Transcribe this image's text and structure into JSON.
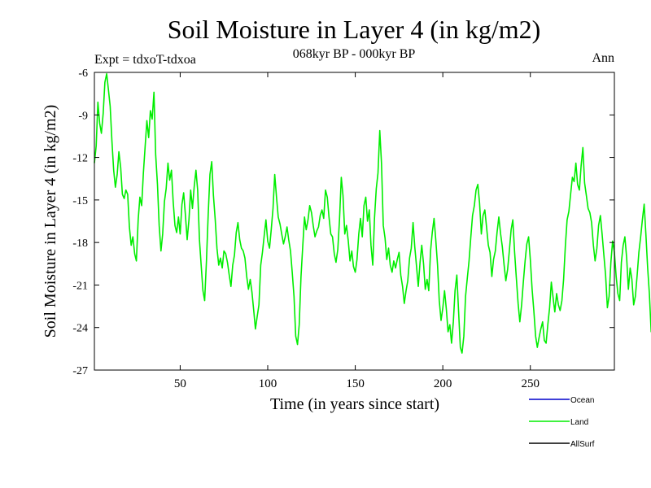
{
  "chart_data": {
    "type": "line",
    "title": "Soil Moisture in Layer 4 (in kg/m2)",
    "subtitle": "068kyr BP - 000kyr BP",
    "left_note": "Expt = tdxoT-tdxoa",
    "right_note": "Ann",
    "xlabel": "Time (in years since start)",
    "ylabel": "Soil Moisture in Layer 4 (in kg/m2)",
    "xlim": [
      1,
      298
    ],
    "ylim": [
      -27,
      -6
    ],
    "xticks": [
      50,
      100,
      150,
      200,
      250
    ],
    "yticks": [
      -6,
      -9,
      -12,
      -15,
      -18,
      -21,
      -24,
      -27
    ],
    "legend_position": "bottom-right",
    "series": [
      {
        "name": "Ocean",
        "color": "#0000cc",
        "values": []
      },
      {
        "name": "Land",
        "color": "#00ee00",
        "x_start": 1,
        "x_step": 1,
        "values": [
          -12.4,
          -11.2,
          -8.1,
          -9.6,
          -10.3,
          -8.9,
          -6.7,
          -6.1,
          -7.2,
          -8.4,
          -10.8,
          -12.9,
          -14.1,
          -13.2,
          -11.6,
          -12.7,
          -14.6,
          -14.9,
          -14.3,
          -14.6,
          -16.9,
          -18.2,
          -17.6,
          -18.8,
          -19.3,
          -16.4,
          -14.8,
          -15.4,
          -13.1,
          -11.2,
          -9.4,
          -10.6,
          -8.7,
          -9.3,
          -7.4,
          -11.8,
          -13.9,
          -16.8,
          -18.6,
          -17.4,
          -15.1,
          -14.2,
          -12.4,
          -13.6,
          -12.9,
          -15.1,
          -16.8,
          -17.3,
          -16.2,
          -17.4,
          -15.3,
          -14.5,
          -16.1,
          -17.8,
          -16.4,
          -14.3,
          -15.6,
          -14.1,
          -12.9,
          -14.3,
          -17.8,
          -19.6,
          -21.4,
          -22.1,
          -19.3,
          -16.1,
          -13.2,
          -12.3,
          -14.7,
          -16.4,
          -18.4,
          -19.6,
          -19.1,
          -19.8,
          -18.6,
          -18.8,
          -19.4,
          -20.3,
          -21.1,
          -19.6,
          -18.9,
          -17.3,
          -16.6,
          -17.8,
          -18.4,
          -18.6,
          -19.1,
          -20.4,
          -21.3,
          -20.6,
          -21.5,
          -22.8,
          -24.1,
          -23.2,
          -22.4,
          -19.6,
          -18.7,
          -17.5,
          -16.4,
          -17.9,
          -18.4,
          -17.1,
          -15.6,
          -13.2,
          -14.8,
          -16.2,
          -16.7,
          -17.4,
          -18.1,
          -17.6,
          -16.9,
          -17.8,
          -18.6,
          -20.1,
          -21.8,
          -24.6,
          -25.2,
          -23.8,
          -20.4,
          -18.3,
          -16.2,
          -17.1,
          -16.4,
          -15.4,
          -15.9,
          -16.8,
          -17.6,
          -17.2,
          -16.9,
          -16.1,
          -15.7,
          -16.3,
          -14.3,
          -14.8,
          -16.2,
          -17.4,
          -17.6,
          -18.8,
          -19.4,
          -18.5,
          -16.4,
          -13.4,
          -14.7,
          -17.4,
          -16.8,
          -17.9,
          -19.3,
          -18.6,
          -19.7,
          -20.1,
          -19.2,
          -17.4,
          -16.3,
          -17.6,
          -15.4,
          -14.8,
          -16.5,
          -15.7,
          -18.2,
          -19.6,
          -16.3,
          -14.2,
          -13.1,
          -10.1,
          -12.4,
          -16.8,
          -17.7,
          -19.2,
          -18.4,
          -19.6,
          -20.1,
          -19.3,
          -19.8,
          -19.2,
          -18.7,
          -20.3,
          -21.1,
          -22.3,
          -21.4,
          -20.7,
          -19.1,
          -18.4,
          -16.6,
          -18.3,
          -19.7,
          -21.1,
          -19.4,
          -18.2,
          -19.5,
          -21.3,
          -20.6,
          -21.4,
          -18.6,
          -17.3,
          -16.3,
          -17.8,
          -19.6,
          -22.1,
          -23.5,
          -22.6,
          -21.4,
          -22.7,
          -24.3,
          -23.8,
          -25.1,
          -23.6,
          -21.4,
          -20.3,
          -22.8,
          -25.4,
          -25.8,
          -24.6,
          -21.8,
          -20.5,
          -19.3,
          -17.6,
          -16.1,
          -15.4,
          -14.3,
          -13.9,
          -15.2,
          -17.4,
          -16.1,
          -15.7,
          -16.9,
          -18.2,
          -18.7,
          -20.4,
          -19.2,
          -18.6,
          -17.3,
          -16.2,
          -17.4,
          -18.3,
          -19.6,
          -20.7,
          -19.9,
          -18.6,
          -17.1,
          -16.4,
          -18.7,
          -20.5,
          -22.3,
          -23.6,
          -22.4,
          -20.8,
          -19.3,
          -18.1,
          -17.6,
          -19.2,
          -21.3,
          -22.8,
          -24.6,
          -25.4,
          -24.7,
          -24.1,
          -23.6,
          -24.9,
          -25.1,
          -23.8,
          -22.6,
          -20.8,
          -21.9,
          -22.9,
          -21.6,
          -22.4,
          -22.8,
          -22.1,
          -20.6,
          -18.2,
          -16.4,
          -15.8,
          -14.6,
          -13.4,
          -13.7,
          -12.4,
          -13.9,
          -14.3,
          -12.6,
          -11.3,
          -13.8,
          -14.7,
          -15.6,
          -15.9,
          -16.6,
          -18.2,
          -19.3,
          -18.4,
          -16.8,
          -16.1,
          -17.4,
          -18.9,
          -20.3,
          -22.6,
          -21.8,
          -19.4,
          -17.9,
          -18.7,
          -20.4,
          -21.6,
          -22.1,
          -19.4,
          -18.2,
          -17.6,
          -19.1,
          -21.3,
          -19.8,
          -20.6,
          -22.4,
          -21.8,
          -20.3,
          -18.7,
          -17.6,
          -16.4,
          -15.3,
          -17.4,
          -19.8,
          -21.6,
          -24.3,
          -22.7,
          -19.6,
          -17.9,
          -17.2,
          -18.6,
          -18.1,
          -17.3,
          -16.4,
          -17.8,
          -19.6,
          -18.4,
          -17.2,
          -18.6,
          -20.4,
          -21.2,
          -22.7,
          -23.9,
          -25.8,
          -24.2,
          -21.6,
          -19.8,
          -18.4,
          -17.4,
          -16.6,
          -18.2,
          -19.7,
          -20.6,
          -22.4,
          -24.1,
          -25.2,
          -23.3,
          -20.9,
          -19.1,
          -18.3,
          -17.4,
          -16.2,
          -16.8,
          -17.6,
          -19.3,
          -20.8,
          -22.3,
          -20.4,
          -19.6,
          -18.1,
          -17.6,
          -16.3,
          -17.8,
          -18.7,
          -19.4,
          -18.9,
          -18.4
        ]
      },
      {
        "name": "AllSurf",
        "color": "#000000",
        "values": []
      }
    ]
  }
}
